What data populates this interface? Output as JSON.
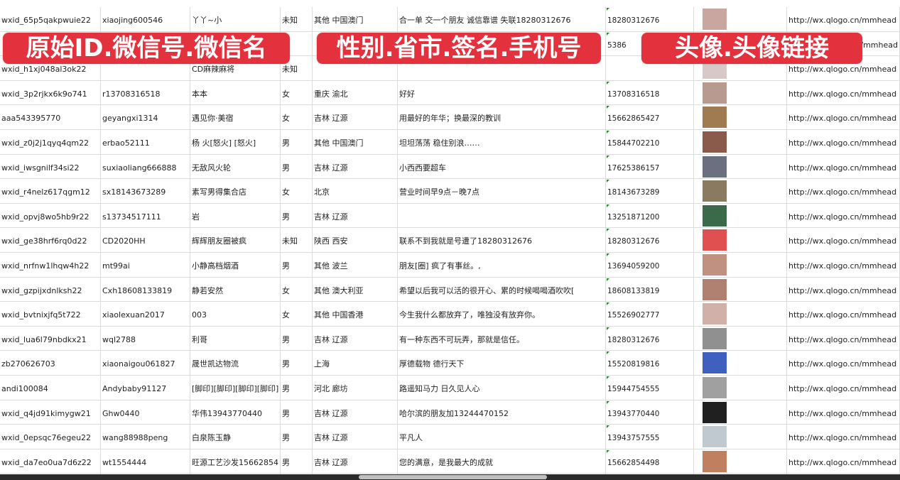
{
  "overlay_labels": [
    "原始ID.微信号.微信名",
    "性别.省市.签名.手机号",
    "头像.头像链接"
  ],
  "colors": {
    "label_bg": "#e3323e",
    "grid": "#dcdcdc",
    "comment_marker": "#2f8a2f"
  },
  "rows": [
    {
      "id": "wxid_65p5qakpwuie22",
      "wechat": "xiaojing600546",
      "name": "丫丫~小",
      "gender": "未知",
      "region": "其他 中国澳门",
      "signature": "合一单 交一个朋友 诚信靠谱 失联18280312676",
      "phone": "18280312676",
      "link": "http://wx.qlogo.cn/mmhead"
    },
    {
      "id": "",
      "wechat": "",
      "name": "",
      "gender": "",
      "region": "",
      "signature": "",
      "phone": "5386",
      "link": "/mmhead"
    },
    {
      "id": "wxid_h1xj048al3ok22",
      "wechat": "",
      "name": "CD麻辣麻将",
      "gender": "未知",
      "region": "",
      "signature": "",
      "phone": "",
      "link": "http://wx.qlogo.cn/mmhead"
    },
    {
      "id": "wxid_3p2rjkx6k9o741",
      "wechat": "r13708316518",
      "name": "本本",
      "gender": "女",
      "region": "重庆 渝北",
      "signature": "好好",
      "phone": "13708316518",
      "link": "http://wx.qlogo.cn/mmhead"
    },
    {
      "id": "aaa543395770",
      "wechat": "geyangxi1314",
      "name": "遇见你·美宿",
      "gender": "女",
      "region": "吉林 辽源",
      "signature": "用最好的年华；换最深的教训",
      "phone": "15662865427",
      "link": "http://wx.qlogo.cn/mmhead"
    },
    {
      "id": "wxid_z0j2j1qyq4qm22",
      "wechat": "erbao52111",
      "name": "杨 火[怒火] [怒火]",
      "gender": "男",
      "region": "其他 中国澳门",
      "signature": "坦坦荡荡 稳住别浪……",
      "phone": "15844702210",
      "link": "http://wx.qlogo.cn/mmhead"
    },
    {
      "id": "wxid_iwsgnilf34si22",
      "wechat": "suxiaoliang666888",
      "name": "无敌风火轮",
      "gender": "男",
      "region": "吉林 辽源",
      "signature": "小西西要超车",
      "phone": "17625386157",
      "link": "http://wx.qlogo.cn/mmhead"
    },
    {
      "id": "wxid_r4nelz617qgm12",
      "wechat": "sx18143673289",
      "name": "素写男得集合店",
      "gender": "女",
      "region": "北京",
      "signature": "营业时间早9点－晚7点",
      "phone": "18143673289",
      "link": "http://wx.qlogo.cn/mmhead"
    },
    {
      "id": "wxid_opvj8wo5hb9r22",
      "wechat": "s13734517111",
      "name": "岩",
      "gender": "男",
      "region": "吉林 辽源",
      "signature": "",
      "phone": "13251871200",
      "link": "http://wx.qlogo.cn/mmhead"
    },
    {
      "id": "wxid_ge38hrf6rq0d22",
      "wechat": "CD2020HH",
      "name": "辉辉朋友圈被疯",
      "gender": "未知",
      "region": "陕西 西安",
      "signature": "联系不到我就是号遭了18280312676",
      "phone": "18280312676",
      "link": "http://wx.qlogo.cn/mmhead"
    },
    {
      "id": "wxid_nrfnw1lhqw4h22",
      "wechat": "mt99ai",
      "name": "小静高档烟酒",
      "gender": "男",
      "region": "其他 波兰",
      "signature": "朋友[圈] 疯了有事丝。,",
      "phone": "13694059200",
      "link": "http://wx.qlogo.cn/mmhead"
    },
    {
      "id": "wxid_gzpijxdnlksh22",
      "wechat": "Cxh18608133819",
      "name": "静若安然",
      "gender": "女",
      "region": "其他 澳大利亚",
      "signature": "希望以后我可以活的很开心、累的时候喝喝酒吹吹[",
      "phone": "18608133819",
      "link": "http://wx.qlogo.cn/mmhead"
    },
    {
      "id": "wxid_bvtnixjfq5t722",
      "wechat": "xiaolexuan2017",
      "name": "003",
      "gender": "女",
      "region": "其他 中国香港",
      "signature": "今生我什么都放弃了，唯独没有放弃你。",
      "phone": "15526902777",
      "link": "http://wx.qlogo.cn/mmhead"
    },
    {
      "id": "wxid_lua6l79nbdkx21",
      "wechat": "wql2788",
      "name": "利哥",
      "gender": "男",
      "region": "吉林 辽源",
      "signature": "有一种东西不可玩弄，那就是信任。",
      "phone": "18280312676",
      "link": "http://wx.qlogo.cn/mmhead"
    },
    {
      "id": "zb270626703",
      "wechat": "xiaonaigou061827",
      "name": "晟世凯达物流",
      "gender": "男",
      "region": "上海",
      "signature": "厚德载物 德行天下",
      "phone": "15520819816",
      "link": "http://wx.qlogo.cn/mmhead"
    },
    {
      "id": "andi100084",
      "wechat": "Andybaby91127",
      "name": "[脚印][脚印][脚印][脚印]",
      "gender": "男",
      "region": "河北 廊坊",
      "signature": "路遥知马力 日久见人心",
      "phone": "15944754555",
      "link": "http://wx.qlogo.cn/mmhead"
    },
    {
      "id": "wxid_q4jd91kimygw21",
      "wechat": "Ghw0440",
      "name": "华伟13943770440",
      "gender": "男",
      "region": "吉林 辽源",
      "signature": "哈尔滨的朋友加13244470152",
      "phone": "13943770440",
      "link": "http://wx.qlogo.cn/mmhead"
    },
    {
      "id": "wxid_0epsqc76egeu22",
      "wechat": "wang88988peng",
      "name": "白泉陈玉静",
      "gender": "男",
      "region": "吉林 辽源",
      "signature": "平凡人",
      "phone": "13943757555",
      "link": "http://wx.qlogo.cn/mmhead"
    },
    {
      "id": "wxid_da7eo0ua7d6z22",
      "wechat": "wt1554444",
      "name": "旺源工艺沙发15662854",
      "gender": "男",
      "region": "吉林 辽源",
      "signature": "您的满意，是我最大的成就",
      "phone": "15662854498",
      "link": "http://wx.qlogo.cn/mmhead"
    },
    {
      "id": "",
      "wechat": "",
      "name": "",
      "gender": "",
      "region": "",
      "signature": "",
      "phone": "",
      "link": ""
    }
  ],
  "avatar_colors": [
    "#c9a7a0",
    "#7a8fb5",
    "#d8c8c8",
    "#b89a90",
    "#a07a50",
    "#8a5a4a",
    "#6a7080",
    "#8a7a60",
    "#3a6a4a",
    "#e05050",
    "#c09080",
    "#b08070",
    "#d0b0a8",
    "#909090",
    "#4060c0",
    "#a0a0a0",
    "#202020",
    "#c0c8d0",
    "#c08060",
    "#708090"
  ]
}
